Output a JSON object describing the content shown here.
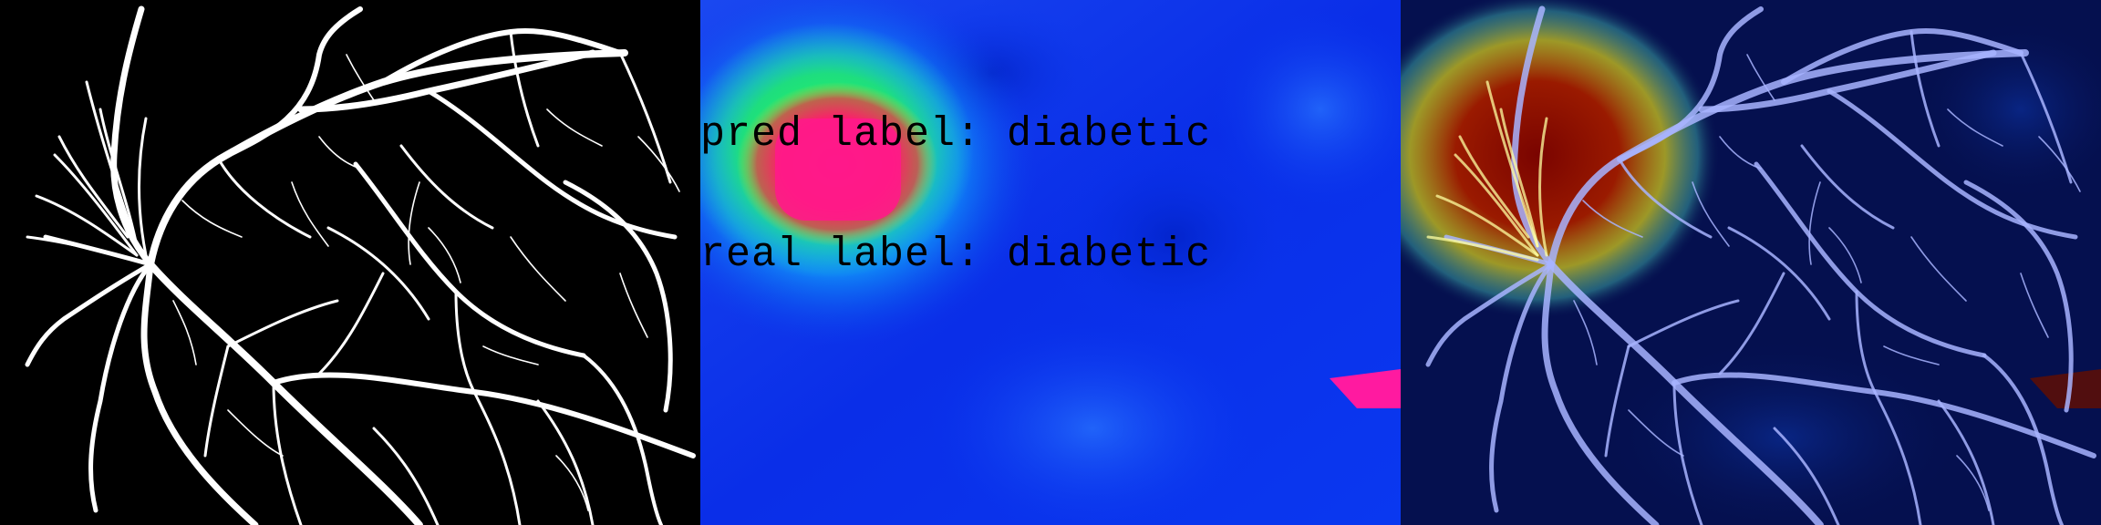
{
  "panels": {
    "vessel_mask": {
      "label_icon": "vessel-segmentation-mask"
    },
    "heatmap": {
      "pred_label_text": "pred label: diabetic",
      "real_label_text": "real label: diabetic",
      "label_icon": "attention-heatmap"
    },
    "overlay": {
      "label_icon": "heatmap-overlay-on-vessels"
    }
  },
  "colors": {
    "background": "#000000",
    "vessel": "#ffffff",
    "heat_low": "#0a2ee0",
    "heat_mid": "#00e6ff",
    "heat_high": "#ff1a8a",
    "overlay_base": "#05104f",
    "overlay_hot": "#6a0a00"
  }
}
